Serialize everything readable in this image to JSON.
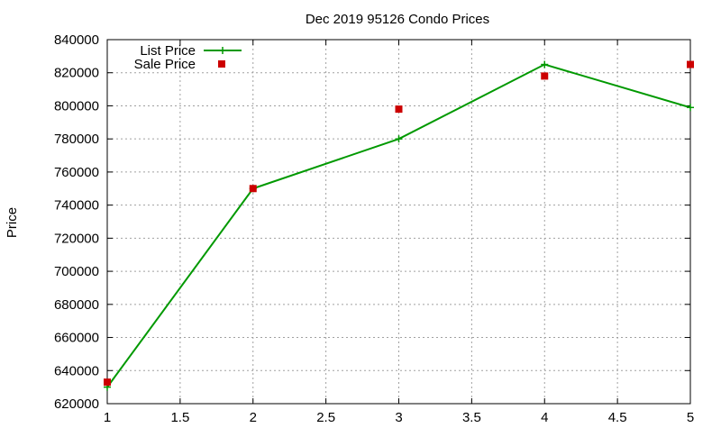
{
  "chart_data": {
    "type": "line",
    "title": "Dec 2019 95126 Condo Prices",
    "xlabel": "",
    "ylabel": "Price",
    "xlim": [
      1,
      5
    ],
    "ylim": [
      620000,
      840000
    ],
    "x_ticks": [
      "1",
      "1.5",
      "2",
      "2.5",
      "3",
      "3.5",
      "4",
      "4.5",
      "5"
    ],
    "y_ticks": [
      "620000",
      "640000",
      "660000",
      "680000",
      "700000",
      "720000",
      "740000",
      "760000",
      "780000",
      "800000",
      "820000",
      "840000"
    ],
    "grid": true,
    "legend_position": "top-left",
    "series": [
      {
        "name": "List Price",
        "style": "line-with-plus-markers",
        "color": "#009900",
        "x": [
          1,
          2,
          3,
          4,
          5
        ],
        "y": [
          630000,
          750000,
          780000,
          825000,
          799000
        ]
      },
      {
        "name": "Sale Price",
        "style": "square-points",
        "color": "#cc0000",
        "x": [
          1,
          2,
          3,
          4,
          5
        ],
        "y": [
          633000,
          750000,
          798000,
          818000,
          825000
        ]
      }
    ]
  }
}
